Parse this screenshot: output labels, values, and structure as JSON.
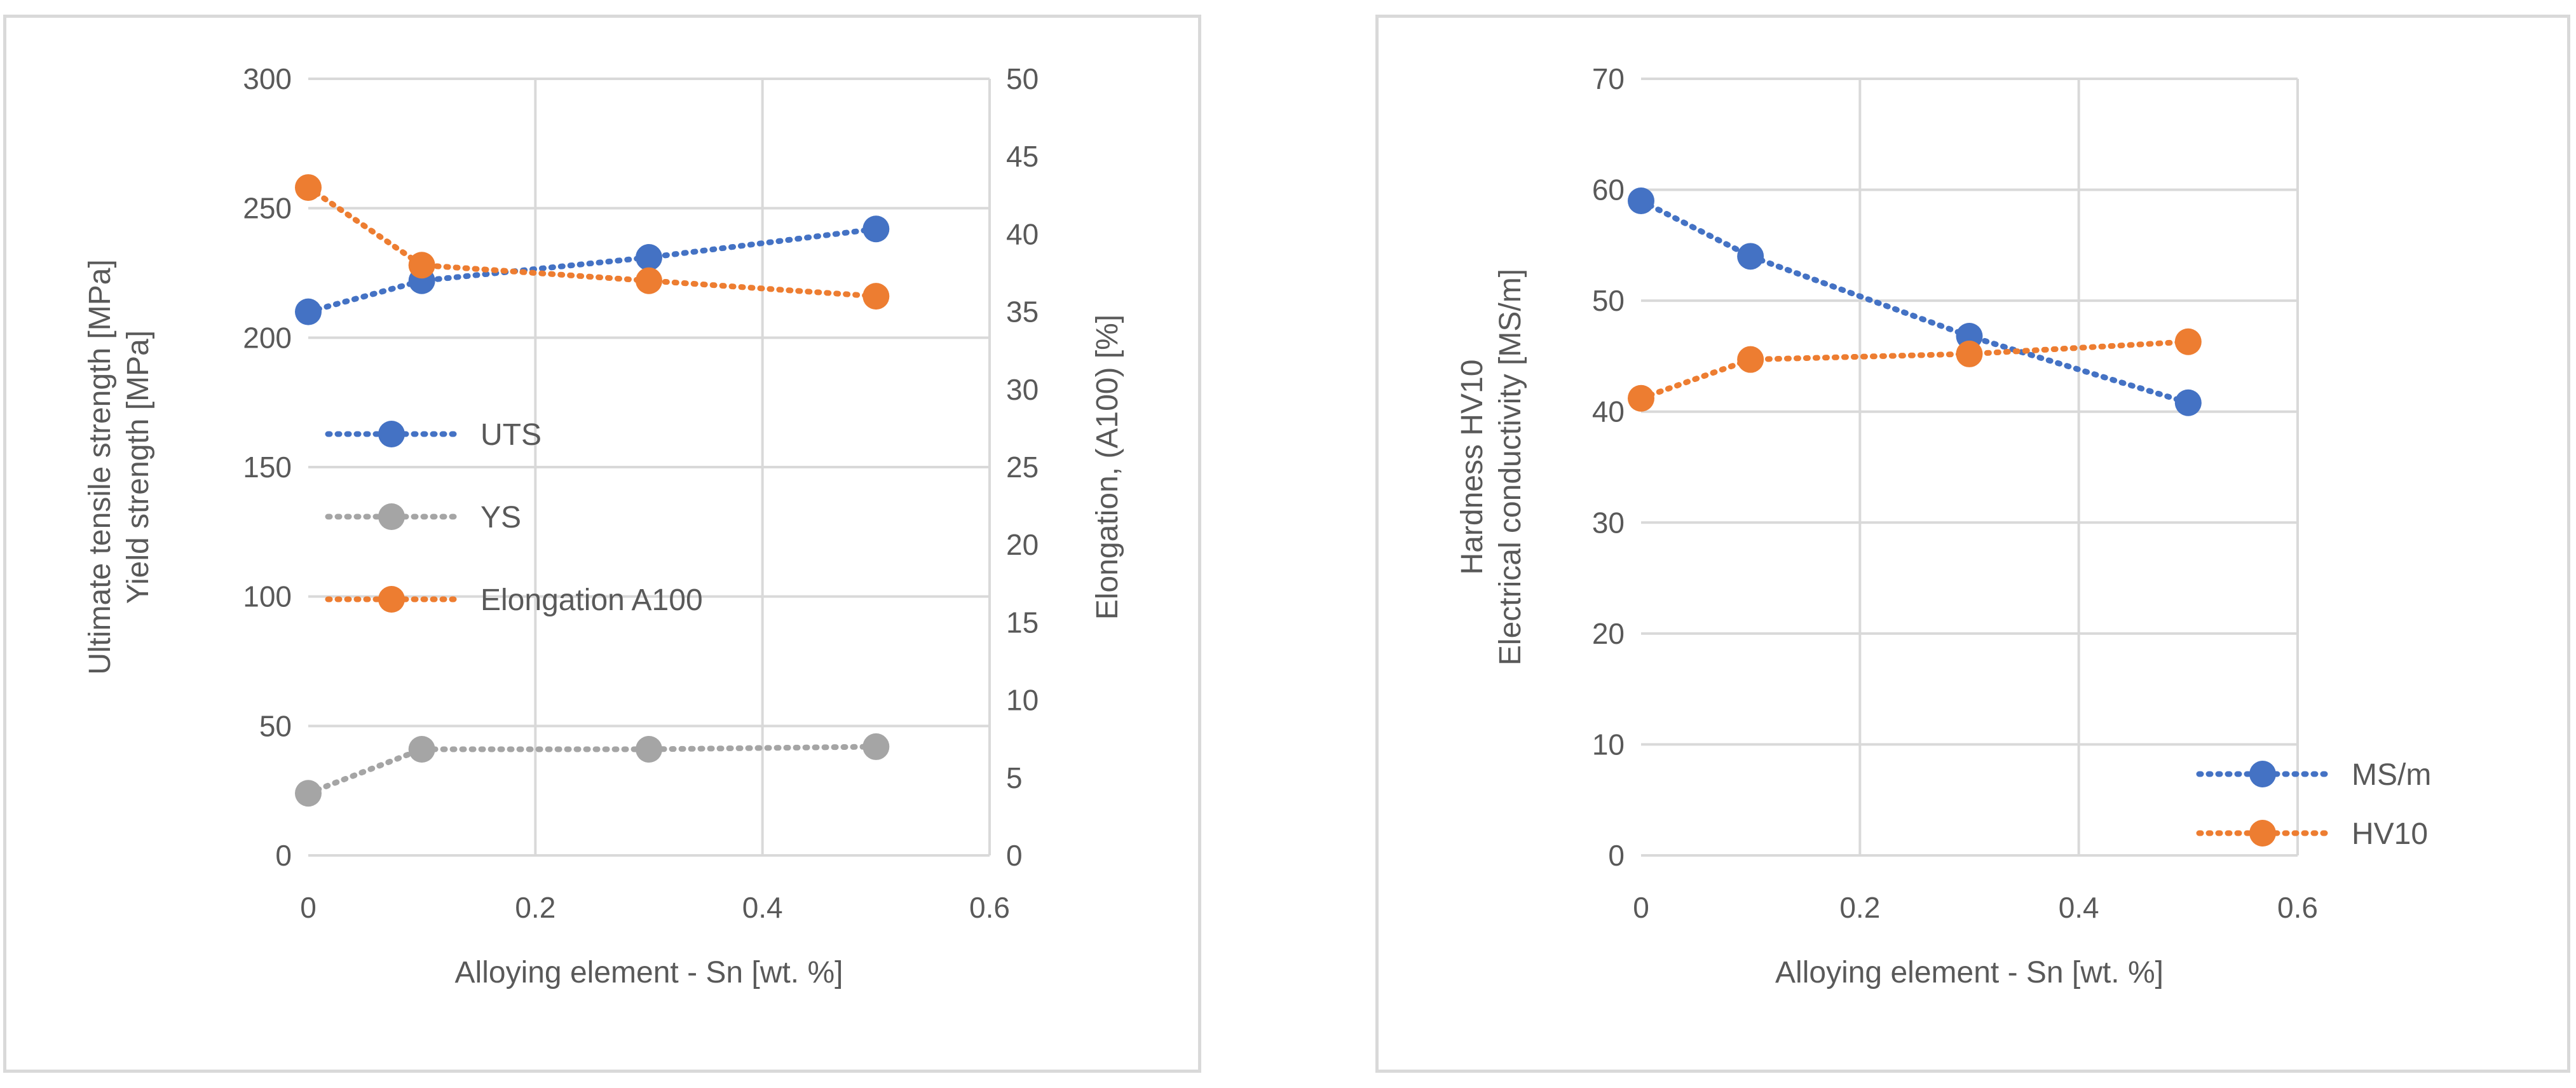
{
  "chart_data": [
    {
      "type": "line",
      "xlabel": "Alloying element - Sn [wt. %]",
      "ylabel_lines": [
        "Ultimate tensile strength [MPa]",
        "Yield strength [MPa]"
      ],
      "y2label": "Elongation, (A100) [%]",
      "xlim": [
        0,
        0.6
      ],
      "ylim": [
        0,
        300
      ],
      "y2lim": [
        0,
        50
      ],
      "x_ticks": [
        "0",
        "0.2",
        "0.4",
        "0.6"
      ],
      "y_ticks": [
        "0",
        "50",
        "100",
        "150",
        "200",
        "250",
        "300"
      ],
      "y2_ticks": [
        "0",
        "5",
        "10",
        "15",
        "20",
        "25",
        "30",
        "35",
        "40",
        "45",
        "50"
      ],
      "grid": true,
      "legend_position": "left-middle",
      "series": [
        {
          "name": "UTS",
          "axis": "left",
          "color": "#4472c4",
          "x": [
            0,
            0.1,
            0.3,
            0.5
          ],
          "y": [
            210,
            222,
            231,
            242
          ]
        },
        {
          "name": "YS",
          "axis": "left",
          "color": "#a5a5a5",
          "x": [
            0,
            0.1,
            0.3,
            0.5
          ],
          "y": [
            24,
            41,
            41,
            42
          ]
        },
        {
          "name": "Elongation A100",
          "axis": "right",
          "color": "#ed7d31",
          "x": [
            0,
            0.1,
            0.3,
            0.5
          ],
          "y": [
            43,
            38,
            37,
            36
          ]
        }
      ]
    },
    {
      "type": "line",
      "xlabel": "Alloying element - Sn [wt. %]",
      "ylabel_lines": [
        "Hardness HV10",
        "Electrical conductivity [MS/m]"
      ],
      "xlim": [
        0,
        0.6
      ],
      "ylim": [
        0,
        70
      ],
      "x_ticks": [
        "0",
        "0.2",
        "0.4",
        "0.6"
      ],
      "y_ticks": [
        "0",
        "10",
        "20",
        "30",
        "40",
        "50",
        "60",
        "70"
      ],
      "grid": true,
      "legend_position": "bottom-right",
      "series": [
        {
          "name": "MS/m",
          "axis": "left",
          "color": "#4472c4",
          "x": [
            0,
            0.1,
            0.3,
            0.5
          ],
          "y": [
            59,
            54,
            46.8,
            40.8
          ]
        },
        {
          "name": "HV10",
          "axis": "left",
          "color": "#ed7d31",
          "x": [
            0,
            0.1,
            0.3,
            0.5
          ],
          "y": [
            41.2,
            44.7,
            45.2,
            46.3
          ]
        }
      ]
    }
  ]
}
